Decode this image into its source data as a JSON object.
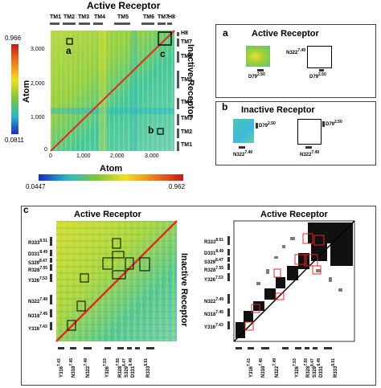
{
  "top": {
    "title": "Active Receptor",
    "ylabel": "Atom",
    "xlabel": "Atom",
    "right_title": "Inactive Receptor",
    "y_ticks": [
      "3,000",
      "2,000",
      "1,000",
      "0"
    ],
    "x_ticks": [
      "0",
      "1,000",
      "2,000",
      "3,000"
    ],
    "cbar_left": {
      "max": "0.966",
      "min": "0.0811"
    },
    "cbar_bottom": {
      "min": "0.0447",
      "max": "0.962"
    },
    "tm_top": [
      "TM1",
      "TM2",
      "TM3",
      "TM4",
      "TM5",
      "TM6",
      "TM7",
      "H8"
    ],
    "tm_right": [
      "H8",
      "TM7",
      "TM6",
      "TM5",
      "TM4",
      "TM3",
      "TM2",
      "TM1"
    ],
    "markers": {
      "a": "a",
      "b": "b",
      "c": "c"
    }
  },
  "panel_a": {
    "letter": "a",
    "title": "Active Receptor",
    "res_n": "N322",
    "res_n_sup": "7.49",
    "res_d": "D79",
    "res_d_sup": "2.50"
  },
  "panel_b": {
    "letter": "b",
    "title": "Inactive Receptor",
    "res_n": "N322",
    "res_n_sup": "7.49",
    "res_d": "D79",
    "res_d_sup": "2.50"
  },
  "panel_c": {
    "letter": "c",
    "left_title": "Active Receptor",
    "right_title": "Active Receptor",
    "side_label": "Inactive Receptor",
    "row_labels": [
      {
        "name": "R333",
        "sup": "8.51"
      },
      {
        "name": "D331",
        "sup": "8.49"
      },
      {
        "name": "S329",
        "sup": "8.47"
      },
      {
        "name": "R328",
        "sup": "7.55"
      },
      {
        "name": "Y326",
        "sup": "7.53"
      },
      {
        "name": "N322",
        "sup": "7.49"
      },
      {
        "name": "N318",
        "sup": "7.45"
      },
      {
        "name": "Y316",
        "sup": "7.43"
      }
    ],
    "col_labels": [
      {
        "name": "Y316",
        "sup": "7.43"
      },
      {
        "name": "N318",
        "sup": "7.45"
      },
      {
        "name": "N322",
        "sup": "7.49"
      },
      {
        "name": "Y326",
        "sup": "7.53"
      },
      {
        "name": "R328",
        "sup": "7.55"
      },
      {
        "name": "S329",
        "sup": "8.47"
      },
      {
        "name": "D331",
        "sup": "8.49"
      },
      {
        "name": "R333",
        "sup": "8.51"
      }
    ]
  },
  "colors": {
    "cmap_low": "#1a2cc8",
    "cmap_mid": "#7cc83a",
    "cmap_high": "#e8281c",
    "highlight_red": "#e8281c",
    "bar_gray": "#666666"
  }
}
